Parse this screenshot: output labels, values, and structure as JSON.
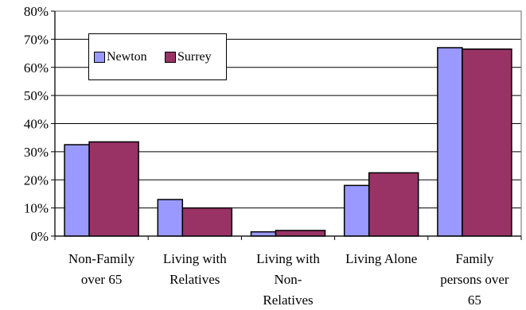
{
  "chart_data": {
    "type": "bar",
    "categories": [
      [
        "Non-Family",
        "over 65"
      ],
      [
        "Living with",
        "Relatives"
      ],
      [
        "Living with",
        "Non-",
        "Relatives"
      ],
      [
        "Living Alone"
      ],
      [
        "Family",
        "persons over",
        "65"
      ]
    ],
    "series": [
      {
        "name": "Newton",
        "color": "#9999ff",
        "values": [
          32.5,
          13,
          1.5,
          18,
          67
        ]
      },
      {
        "name": "Surrey",
        "color": "#993366",
        "values": [
          33.5,
          10,
          2,
          22.5,
          66.5
        ]
      }
    ],
    "ylim": [
      0,
      80
    ],
    "yticks": [
      "0%",
      "10%",
      "20%",
      "30%",
      "40%",
      "50%",
      "60%",
      "70%",
      "80%"
    ],
    "grid": true,
    "legend_position": "top-left"
  }
}
